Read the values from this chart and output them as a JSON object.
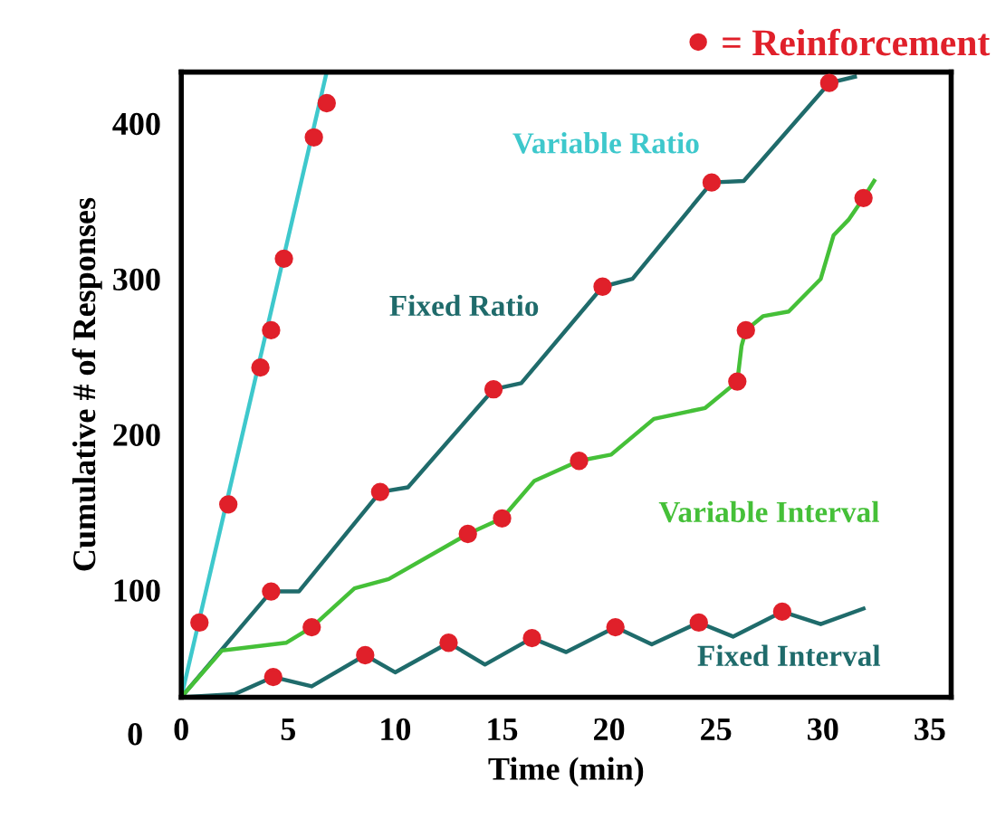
{
  "chart_data": {
    "type": "line",
    "xlabel": "Time (min)",
    "ylabel": "Cumulative # of Responses",
    "xlim": [
      0,
      36
    ],
    "ylim": [
      31,
      433
    ],
    "xticks": [
      0,
      5,
      10,
      15,
      20,
      25,
      30,
      35
    ],
    "yticks": [
      100,
      200,
      300,
      400
    ],
    "grid": false,
    "legend": "top right",
    "marker": "none",
    "line_style": "solid",
    "annotations": [
      "0"
    ],
    "series": [
      {
        "name": "Variable Ratio",
        "color": "#3ec8cc",
        "x": [
          0,
          6.8
        ],
        "values": [
          31,
          433
        ]
      },
      {
        "name": "Fixed Ratio",
        "color": "#1f6b6b",
        "x": [
          0,
          4.2,
          5.5,
          9.3,
          10.6,
          14.6,
          15.9,
          19.7,
          21.1,
          24.8,
          26.3,
          30.3,
          31.5
        ],
        "values": [
          31,
          99,
          99,
          163,
          166,
          229,
          233,
          295,
          300,
          362,
          363,
          426,
          430
        ]
      },
      {
        "name": "Variable Interval",
        "color": "#45c038",
        "x": [
          0,
          1.9,
          4.9,
          6.1,
          8.1,
          9.7,
          13.4,
          15.0,
          16.5,
          18.6,
          20.1,
          22.1,
          24.5,
          26.0,
          26.2,
          26.4,
          27.2,
          28.4,
          29.9,
          30.5,
          31.2,
          31.9,
          32.4
        ],
        "values": [
          31,
          61,
          66,
          76,
          101,
          107,
          136,
          146,
          170,
          183,
          187,
          210,
          217,
          234,
          257,
          267,
          276,
          279,
          300,
          328,
          338,
          352,
          363
        ]
      },
      {
        "name": "Fixed Interval",
        "color": "#1f6b6b",
        "x": [
          0,
          2.5,
          4.3,
          6.1,
          8.6,
          10.0,
          12.5,
          14.2,
          16.4,
          18.0,
          20.3,
          22.0,
          24.2,
          25.8,
          28.1,
          29.9,
          31.9
        ],
        "values": [
          31,
          33,
          44,
          38,
          58,
          47,
          66,
          52,
          69,
          60,
          76,
          65,
          79,
          70,
          86,
          78,
          88
        ]
      },
      {
        "name": "= Reinforcement",
        "type": "scatter",
        "marker": "circle",
        "color": "#e0202a",
        "x": [
          0.85,
          2.2,
          3.7,
          4.2,
          4.8,
          6.2,
          6.8,
          4.2,
          9.3,
          14.6,
          19.7,
          24.8,
          30.3,
          6.1,
          13.4,
          15.0,
          18.6,
          26.0,
          26.4,
          31.9,
          4.3,
          8.6,
          12.5,
          16.4,
          20.3,
          24.2,
          28.1
        ],
        "values": [
          79,
          155,
          243,
          267,
          313,
          391,
          413,
          99,
          163,
          229,
          295,
          362,
          426,
          76,
          136,
          146,
          183,
          234,
          267,
          352,
          44,
          58,
          66,
          69,
          76,
          79,
          86
        ]
      }
    ]
  }
}
